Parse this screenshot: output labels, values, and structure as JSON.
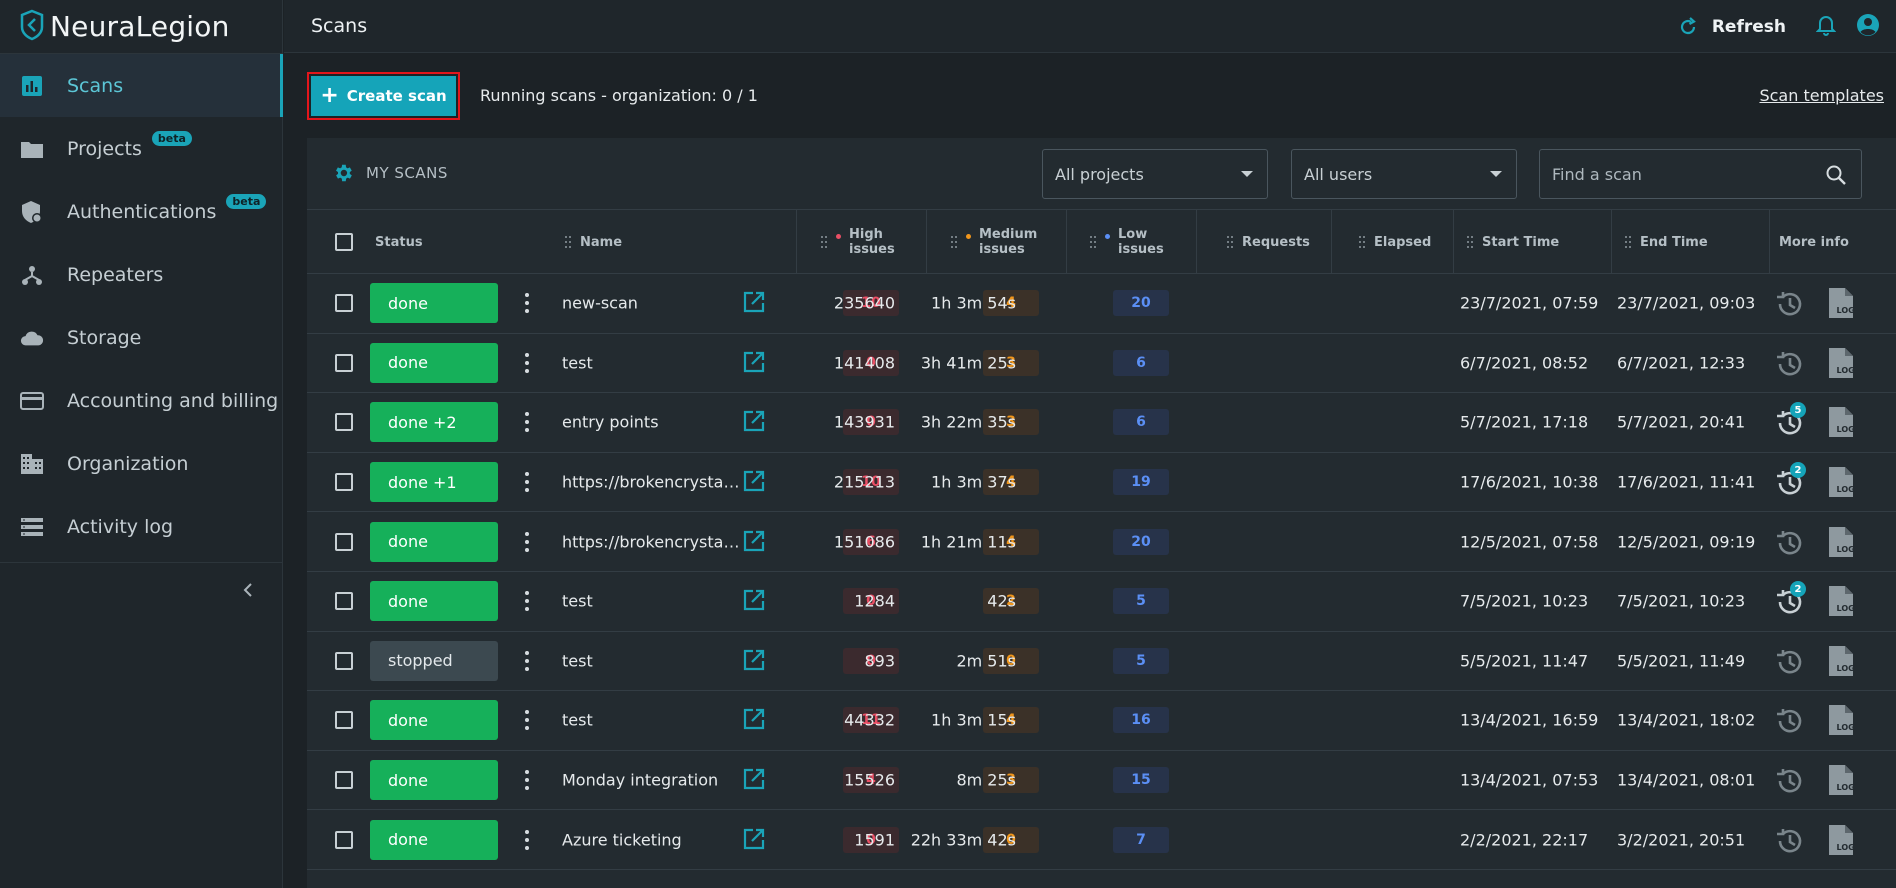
{
  "app": {
    "name": "NeuraLegion"
  },
  "sidebar": {
    "items": [
      {
        "label": "Scans",
        "icon": "scans-icon",
        "active": true,
        "beta": ""
      },
      {
        "label": "Projects",
        "icon": "folder-icon",
        "active": false,
        "beta": "beta"
      },
      {
        "label": "Authentications",
        "icon": "shield-lock-icon",
        "active": false,
        "beta": "beta"
      },
      {
        "label": "Repeaters",
        "icon": "repeater-icon",
        "active": false,
        "beta": ""
      },
      {
        "label": "Storage",
        "icon": "cloud-icon",
        "active": false,
        "beta": ""
      },
      {
        "label": "Accounting and billing",
        "icon": "credit-card-icon",
        "active": false,
        "beta": ""
      },
      {
        "label": "Organization",
        "icon": "building-icon",
        "active": false,
        "beta": ""
      },
      {
        "label": "Activity log",
        "icon": "list-icon",
        "active": false,
        "beta": ""
      }
    ]
  },
  "header": {
    "title": "Scans",
    "refresh_label": "Refresh"
  },
  "toolbar": {
    "create_label": "Create scan",
    "running_text": "Running scans - organization: 0 / 1",
    "templates_link": "Scan templates"
  },
  "panel": {
    "title": "MY SCANS",
    "projects_filter": "All projects",
    "users_filter": "All users",
    "search_placeholder": "Find a scan"
  },
  "table": {
    "headers": {
      "status": "Status",
      "name": "Name",
      "high_line1": "High",
      "high_line2": "issues",
      "medium_line1": "Medium",
      "medium_line2": "issues",
      "low_line1": "Low",
      "low_line2": "issues",
      "requests": "Requests",
      "elapsed": "Elapsed",
      "start": "Start Time",
      "end": "End Time",
      "more": "More info"
    },
    "rows": [
      {
        "status": "done",
        "kind": "done",
        "name": "new-scan",
        "high": "10",
        "medium": "4",
        "low": "20",
        "requests": "235640",
        "elapsed": "1h 3m 54s",
        "start": "23/7/2021, 07:59",
        "end": "23/7/2021, 09:03",
        "history_badge": ""
      },
      {
        "status": "done",
        "kind": "done",
        "name": "test",
        "high": "0",
        "medium": "3",
        "low": "6",
        "requests": "141408",
        "elapsed": "3h 41m 25s",
        "start": "6/7/2021, 08:52",
        "end": "6/7/2021, 12:33",
        "history_badge": ""
      },
      {
        "status": "done +2",
        "kind": "done",
        "name": "entry points",
        "high": "0",
        "medium": "3",
        "low": "6",
        "requests": "143931",
        "elapsed": "3h 22m 35s",
        "start": "5/7/2021, 17:18",
        "end": "5/7/2021, 20:41",
        "history_badge": "5"
      },
      {
        "status": "done +1",
        "kind": "done",
        "name": "https://brokencrystals.com",
        "high": "10",
        "medium": "4",
        "low": "19",
        "requests": "215213",
        "elapsed": "1h 3m 37s",
        "start": "17/6/2021, 10:38",
        "end": "17/6/2021, 11:41",
        "history_badge": "2"
      },
      {
        "status": "done",
        "kind": "done",
        "name": "https://brokencrystals.com",
        "high": "6",
        "medium": "4",
        "low": "20",
        "requests": "151086",
        "elapsed": "1h 21m 11s",
        "start": "12/5/2021, 07:58",
        "end": "12/5/2021, 09:19",
        "history_badge": ""
      },
      {
        "status": "done",
        "kind": "done",
        "name": "test",
        "high": "0",
        "medium": "2",
        "low": "5",
        "requests": "1284",
        "elapsed": "42s",
        "start": "7/5/2021, 10:23",
        "end": "7/5/2021, 10:23",
        "history_badge": "2"
      },
      {
        "status": "stopped",
        "kind": "stopped",
        "name": "test",
        "high": "0",
        "medium": "0",
        "low": "5",
        "requests": "893",
        "elapsed": "2m 51s",
        "start": "5/5/2021, 11:47",
        "end": "5/5/2021, 11:49",
        "history_badge": ""
      },
      {
        "status": "done",
        "kind": "done",
        "name": "test",
        "high": "11",
        "medium": "4",
        "low": "16",
        "requests": "44332",
        "elapsed": "1h 3m 15s",
        "start": "13/4/2021, 16:59",
        "end": "13/4/2021, 18:02",
        "history_badge": ""
      },
      {
        "status": "done",
        "kind": "done",
        "name": "Monday integration",
        "high": "4",
        "medium": "3",
        "low": "15",
        "requests": "15526",
        "elapsed": "8m 25s",
        "start": "13/4/2021, 07:53",
        "end": "13/4/2021, 08:01",
        "history_badge": ""
      },
      {
        "status": "done",
        "kind": "done",
        "name": "Azure ticketing",
        "high": "0",
        "medium": "0",
        "low": "7",
        "requests": "1591",
        "elapsed": "22h 33m 42s",
        "start": "2/2/2021, 22:17",
        "end": "3/2/2021, 20:51",
        "history_badge": ""
      }
    ]
  },
  "colors": {
    "accent": "#15a4b9",
    "done": "#16b05a",
    "high": "#ea4f65",
    "medium": "#f0961c",
    "low": "#5b8ff5"
  }
}
